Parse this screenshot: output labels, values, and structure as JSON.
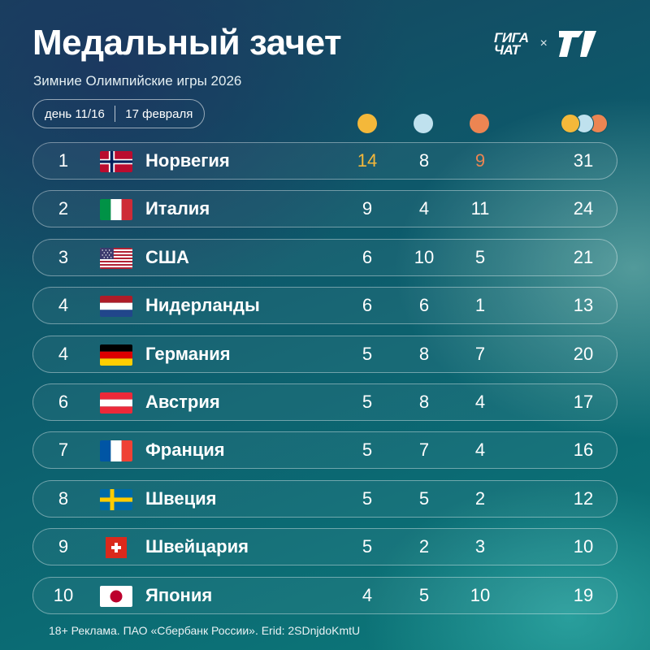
{
  "header": {
    "title": "Медальный зачет",
    "subtitle": "Зимние Олимпийские игры 2026",
    "day": "день 11/16",
    "date": "17 февраля"
  },
  "brand": {
    "giga_line1": "ГИГА",
    "giga_line2": "ЧАТ",
    "cross": "×",
    "partner_icon": "sport-logo-icon"
  },
  "colors": {
    "gold": "#f4b83a",
    "silver": "#bfe1ee",
    "bronze": "#ec8552"
  },
  "table": {
    "rows": [
      {
        "rank": "1",
        "flag": "norway-flag-icon",
        "country": "Норвегия",
        "gold": "14",
        "silver": "8",
        "bronze": "9",
        "total": "31"
      },
      {
        "rank": "2",
        "flag": "italy-flag-icon",
        "country": "Италия",
        "gold": "9",
        "silver": "4",
        "bronze": "11",
        "total": "24"
      },
      {
        "rank": "3",
        "flag": "usa-flag-icon",
        "country": "США",
        "gold": "6",
        "silver": "10",
        "bronze": "5",
        "total": "21"
      },
      {
        "rank": "4",
        "flag": "netherlands-flag-icon",
        "country": "Нидерланды",
        "gold": "6",
        "silver": "6",
        "bronze": "1",
        "total": "13"
      },
      {
        "rank": "4",
        "flag": "germany-flag-icon",
        "country": "Германия",
        "gold": "5",
        "silver": "8",
        "bronze": "7",
        "total": "20"
      },
      {
        "rank": "6",
        "flag": "austria-flag-icon",
        "country": "Австрия",
        "gold": "5",
        "silver": "8",
        "bronze": "4",
        "total": "17"
      },
      {
        "rank": "7",
        "flag": "france-flag-icon",
        "country": "Франция",
        "gold": "5",
        "silver": "7",
        "bronze": "4",
        "total": "16"
      },
      {
        "rank": "8",
        "flag": "sweden-flag-icon",
        "country": "Швеция",
        "gold": "5",
        "silver": "5",
        "bronze": "2",
        "total": "12"
      },
      {
        "rank": "9",
        "flag": "switzerland-flag-icon",
        "country": "Швейцария",
        "gold": "5",
        "silver": "2",
        "bronze": "3",
        "total": "10"
      },
      {
        "rank": "10",
        "flag": "japan-flag-icon",
        "country": "Япония",
        "gold": "4",
        "silver": "5",
        "bronze": "10",
        "total": "19"
      }
    ]
  },
  "footer": {
    "disclaimer": "18+ Реклама. ПАО «Сбербанк России». Erid: 2SDnjdoKmtU"
  }
}
